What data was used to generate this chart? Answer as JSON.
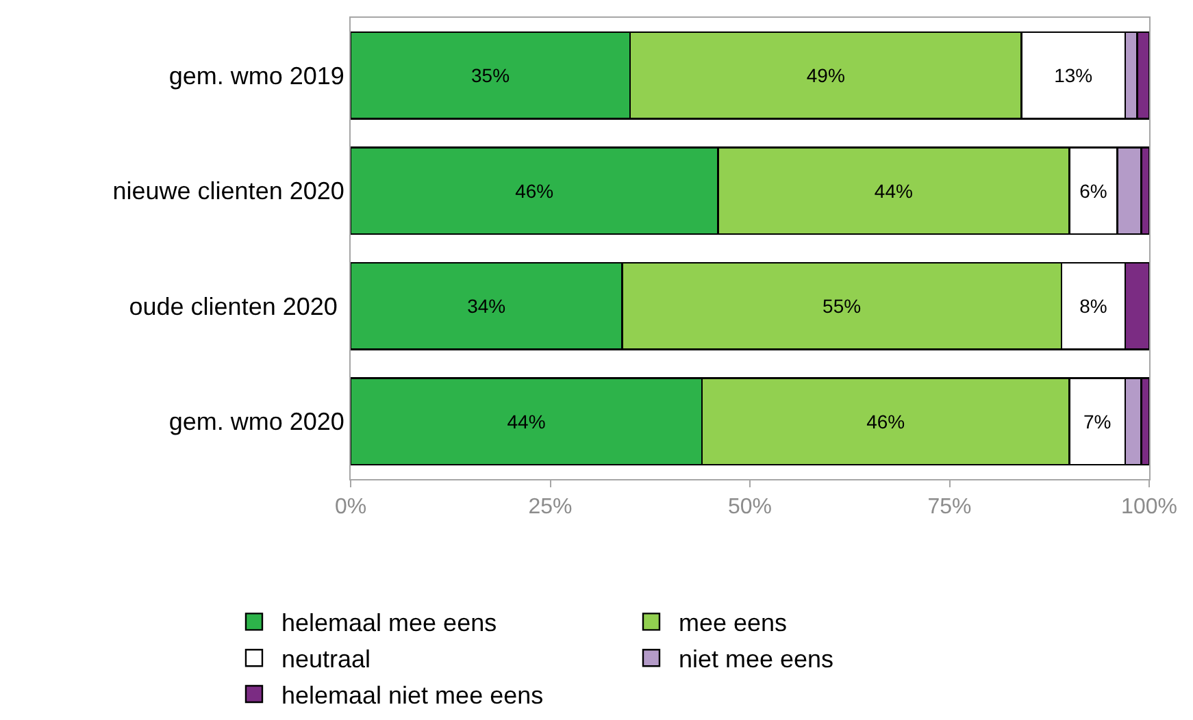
{
  "chart_data": {
    "type": "bar",
    "orientation": "horizontal",
    "stacked": true,
    "categories": [
      "gem. wmo 2019",
      "nieuwe clienten 2020",
      "oude clienten 2020 ",
      "gem. wmo 2020"
    ],
    "series": [
      {
        "name": "helemaal mee eens",
        "color": "#2db34a",
        "values": [
          35,
          46,
          34,
          44
        ],
        "value_labels": [
          "35%",
          "46%",
          "34%",
          "44%"
        ]
      },
      {
        "name": "mee eens",
        "color": "#92d050",
        "values": [
          49,
          44,
          55,
          46
        ],
        "value_labels": [
          "49%",
          "44%",
          "55%",
          "46%"
        ]
      },
      {
        "name": "neutraal",
        "color": "#ffffff",
        "values": [
          13,
          6,
          8,
          7
        ],
        "value_labels": [
          "13%",
          "6%",
          "8%",
          "7%"
        ]
      },
      {
        "name": "niet mee eens",
        "color": "#b49bc8",
        "values": [
          1.5,
          3,
          0,
          2
        ],
        "value_labels": [
          null,
          null,
          null,
          null
        ]
      },
      {
        "name": "helemaal niet mee eens",
        "color": "#7b2c83",
        "values": [
          1.5,
          1,
          3,
          1
        ],
        "value_labels": [
          null,
          null,
          null,
          null
        ]
      }
    ],
    "xlim": [
      0,
      100
    ],
    "xticks": [
      {
        "value": 0,
        "label": "0%"
      },
      {
        "value": 25,
        "label": "25%"
      },
      {
        "value": 50,
        "label": "50%"
      },
      {
        "value": 75,
        "label": "75%"
      },
      {
        "value": 100,
        "label": "100%"
      }
    ],
    "grid": false,
    "legend": "bottom"
  }
}
